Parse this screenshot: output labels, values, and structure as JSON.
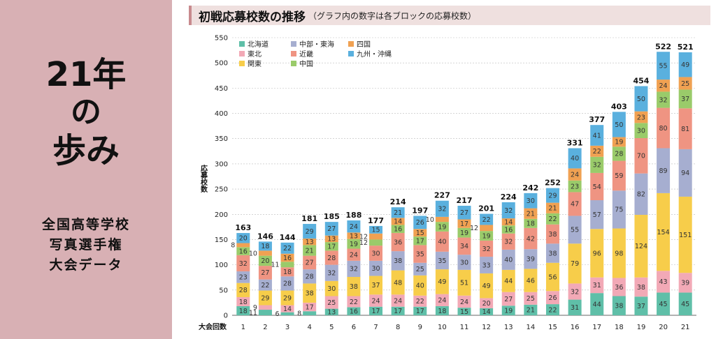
{
  "panel": {
    "title_line1": "21年",
    "title_line2": "の",
    "title_line3": "歩み",
    "subtitle_lines": [
      "全国高等学校",
      "写真選手権",
      "大会データ"
    ]
  },
  "header": {
    "title": "初戦応募校数の推移",
    "note": "（グラフ内の数字は各ブロックの応募校数）"
  },
  "chart_data": {
    "type": "bar",
    "stacked": true,
    "xlabel": "大会回数",
    "ylabel": "応募校数",
    "ylim": [
      0,
      550
    ],
    "yticks": [
      0,
      50,
      100,
      150,
      200,
      250,
      300,
      350,
      400,
      450,
      500,
      550
    ],
    "grid": true,
    "legend": "top-left",
    "categories": [
      "1",
      "2",
      "3",
      "4",
      "5",
      "6",
      "7",
      "8",
      "9",
      "10",
      "11",
      "12",
      "13",
      "14",
      "15",
      "16",
      "17",
      "18",
      "19",
      "20",
      "21"
    ],
    "series": [
      {
        "name": "北海道",
        "color": "#5fbfa8",
        "values": [
          18,
          11,
          6,
          8,
          13,
          16,
          17,
          17,
          17,
          18,
          15,
          14,
          19,
          21,
          22,
          31,
          44,
          38,
          37,
          45,
          45
        ]
      },
      {
        "name": "東北",
        "color": "#f2a9b6",
        "values": [
          18,
          9,
          14,
          17,
          25,
          22,
          24,
          24,
          22,
          24,
          24,
          20,
          27,
          25,
          26,
          32,
          31,
          36,
          38,
          43,
          39
        ]
      },
      {
        "name": "関東",
        "color": "#f7cd4a",
        "values": [
          28,
          29,
          29,
          38,
          30,
          38,
          37,
          48,
          40,
          49,
          51,
          49,
          44,
          46,
          56,
          79,
          96,
          98,
          124,
          154,
          151
        ]
      },
      {
        "name": "中部・東海",
        "color": "#a6aed0",
        "values": [
          23,
          22,
          28,
          28,
          32,
          32,
          30,
          38,
          25,
          35,
          30,
          33,
          40,
          39,
          38,
          55,
          57,
          75,
          82,
          89,
          94
        ]
      },
      {
        "name": "近畿",
        "color": "#ef9482",
        "values": [
          32,
          27,
          18,
          27,
          28,
          24,
          30,
          36,
          35,
          40,
          34,
          32,
          32,
          42,
          38,
          47,
          54,
          59,
          70,
          80,
          81
        ]
      },
      {
        "name": "中国",
        "color": "#9acb6a",
        "values": [
          16,
          20,
          11,
          21,
          17,
          19,
          12,
          16,
          17,
          19,
          19,
          19,
          16,
          18,
          22,
          23,
          32,
          28,
          30,
          32,
          37
        ]
      },
      {
        "name": "四国",
        "color": "#f0a152",
        "values": [
          8,
          10,
          16,
          13,
          13,
          13,
          12,
          14,
          15,
          10,
          17,
          12,
          14,
          21,
          21,
          24,
          22,
          19,
          23,
          24,
          25
        ]
      },
      {
        "name": "九州・沖縄",
        "color": "#5ab0de",
        "values": [
          20,
          18,
          22,
          29,
          27,
          24,
          15,
          21,
          26,
          32,
          27,
          22,
          32,
          30,
          29,
          40,
          41,
          50,
          50,
          55,
          49
        ]
      }
    ],
    "totals": [
      163,
      146,
      144,
      181,
      185,
      188,
      177,
      214,
      197,
      227,
      217,
      201,
      224,
      242,
      252,
      331,
      377,
      403,
      454,
      522,
      521
    ]
  }
}
